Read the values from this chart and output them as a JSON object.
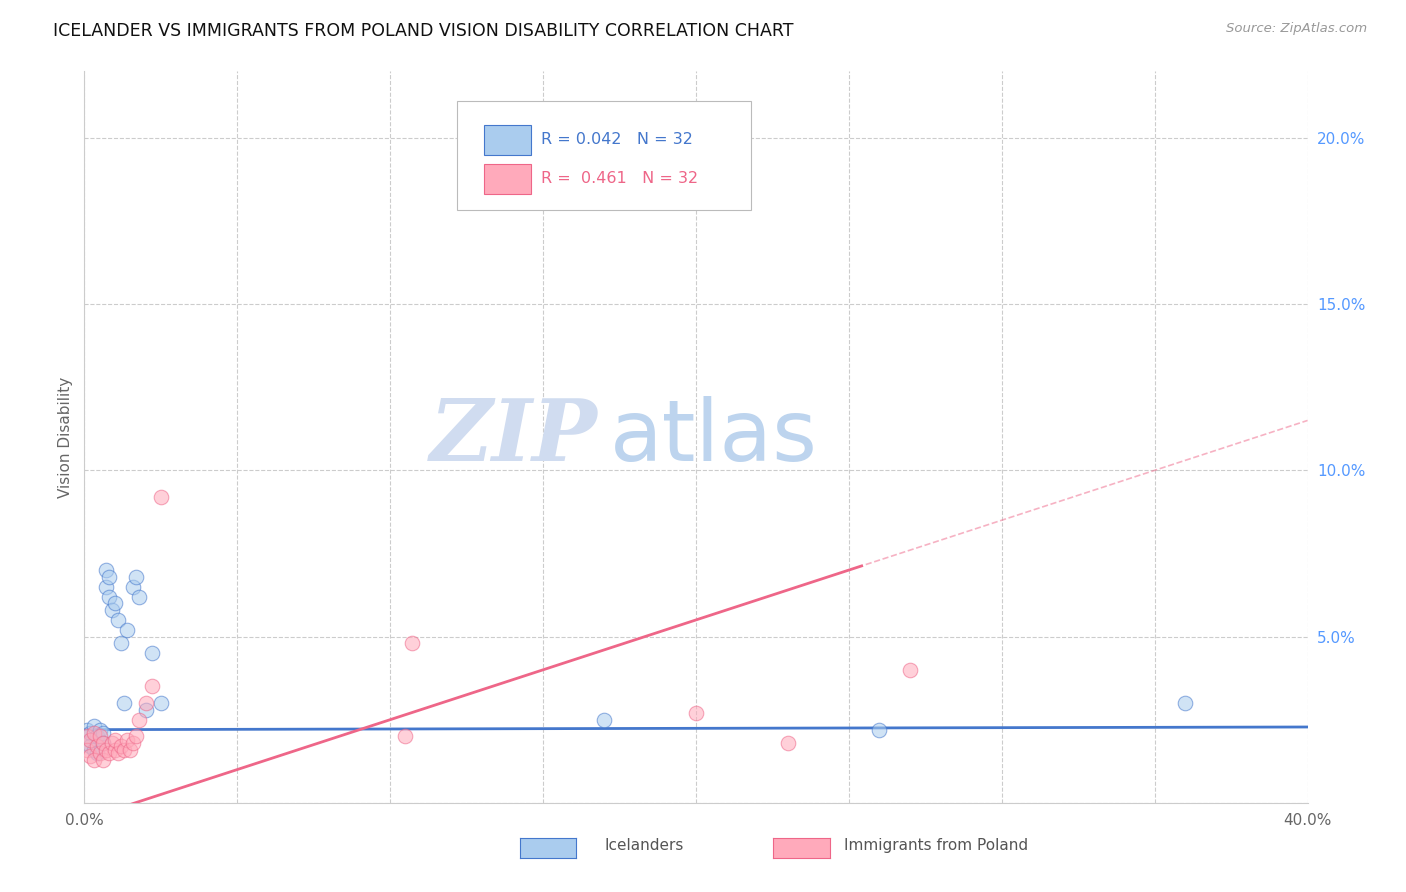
{
  "title": "ICELANDER VS IMMIGRANTS FROM POLAND VISION DISABILITY CORRELATION CHART",
  "source": "Source: ZipAtlas.com",
  "ylabel": "Vision Disability",
  "xlim": [
    0.0,
    0.4
  ],
  "ylim": [
    0.0,
    0.22
  ],
  "blue_color": "#AACCEE",
  "pink_color": "#FFAABB",
  "blue_line_color": "#4477CC",
  "pink_line_color": "#EE6688",
  "legend_r_blue": "0.042",
  "legend_n_blue": "32",
  "legend_r_pink": "0.461",
  "legend_n_pink": "32",
  "label_blue": "Icelanders",
  "label_pink": "Immigrants from Poland",
  "watermark_zip": "ZIP",
  "watermark_atlas": "atlas",
  "blue_line_intercept": 0.022,
  "blue_line_slope": 0.002,
  "pink_line_intercept": -0.005,
  "pink_line_slope": 0.3,
  "icelanders_x": [
    0.001,
    0.001,
    0.002,
    0.002,
    0.003,
    0.003,
    0.004,
    0.004,
    0.005,
    0.005,
    0.006,
    0.006,
    0.007,
    0.007,
    0.008,
    0.008,
    0.009,
    0.009,
    0.01,
    0.011,
    0.012,
    0.013,
    0.014,
    0.016,
    0.017,
    0.018,
    0.02,
    0.022,
    0.025,
    0.17,
    0.26,
    0.36
  ],
  "icelanders_y": [
    0.022,
    0.018,
    0.021,
    0.017,
    0.023,
    0.016,
    0.02,
    0.015,
    0.022,
    0.019,
    0.021,
    0.018,
    0.065,
    0.07,
    0.068,
    0.062,
    0.058,
    0.05,
    0.06,
    0.055,
    0.048,
    0.03,
    0.052,
    0.065,
    0.068,
    0.062,
    0.028,
    0.045,
    0.03,
    0.025,
    0.022,
    0.03
  ],
  "poland_x": [
    0.001,
    0.001,
    0.002,
    0.002,
    0.003,
    0.003,
    0.004,
    0.005,
    0.005,
    0.006,
    0.006,
    0.007,
    0.008,
    0.009,
    0.01,
    0.01,
    0.011,
    0.012,
    0.013,
    0.014,
    0.015,
    0.016,
    0.017,
    0.018,
    0.02,
    0.022,
    0.025,
    0.105,
    0.105,
    0.2,
    0.23,
    0.27
  ],
  "poland_y": [
    0.02,
    0.016,
    0.019,
    0.014,
    0.021,
    0.013,
    0.017,
    0.02,
    0.015,
    0.018,
    0.013,
    0.016,
    0.015,
    0.018,
    0.016,
    0.019,
    0.015,
    0.017,
    0.016,
    0.019,
    0.016,
    0.018,
    0.02,
    0.025,
    0.03,
    0.035,
    0.092,
    0.02,
    0.048,
    0.027,
    0.018,
    0.04
  ]
}
